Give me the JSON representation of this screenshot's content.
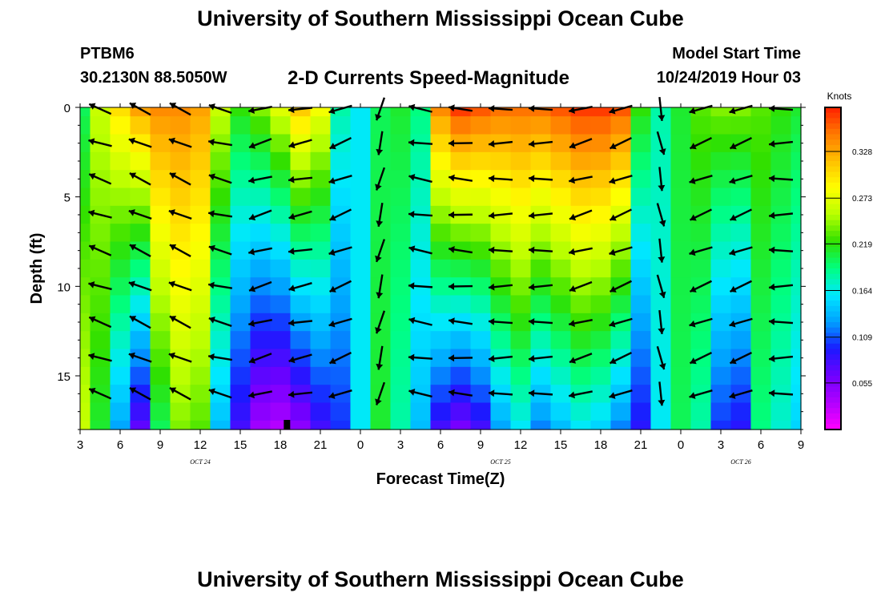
{
  "header": {
    "title": "University of Southern Mississippi Ocean Cube",
    "station_id": "PTBM6",
    "station_coords": "30.2130N 88.5050W",
    "chart_title": "2-D Currents Speed-Magnitude",
    "model_start_label": "Model Start Time",
    "model_start_value": "10/24/2019 Hour 03"
  },
  "footer": {
    "title": "University of Southern Mississippi Ocean Cube"
  },
  "chart_data": {
    "type": "heatmap",
    "title": "2-D Currents Speed-Magnitude",
    "xlabel": "Forecast Time(Z)",
    "ylabel": "Depth (ft)",
    "x_ticks_hours": [
      0,
      3,
      6,
      9,
      12,
      15,
      18,
      21,
      24,
      27,
      30,
      33,
      36,
      39,
      42,
      45,
      48,
      51,
      54
    ],
    "x_tick_labels": [
      "3",
      "6",
      "9",
      "12",
      "15",
      "18",
      "21",
      "0",
      "3",
      "6",
      "9",
      "12",
      "15",
      "18",
      "21",
      "0",
      "3",
      "6",
      "9"
    ],
    "xlim_hours_from_start": [
      0,
      54
    ],
    "date_labels": [
      {
        "text": "OCT 24",
        "hour": 9
      },
      {
        "text": "OCT 25",
        "hour": 31.5
      },
      {
        "text": "OCT 26",
        "hour": 49.5
      }
    ],
    "y_ticks": [
      0,
      5,
      10,
      15
    ],
    "ylim_ft": [
      0,
      18
    ],
    "colorbar": {
      "label": "Knots",
      "min": 0.0,
      "max": 0.38,
      "ticks": [
        "0.055",
        "0.109",
        "0.164",
        "0.219",
        "0.273",
        "0.328"
      ],
      "colors": [
        "#ff00ff",
        "#b000ff",
        "#7000ff",
        "#1a1aff",
        "#00a0ff",
        "#00e8ff",
        "#00ff80",
        "#30e000",
        "#b8ff00",
        "#ffff00",
        "#ffc000",
        "#ff7a00",
        "#ff2000"
      ]
    },
    "column_hours": [
      0,
      1.5,
      3,
      4.5,
      6,
      7.5,
      9,
      10.5,
      12,
      13.5,
      15,
      16.5,
      18,
      19.5,
      21,
      22.5,
      24,
      25.5,
      27,
      28.5,
      30,
      31.5,
      33,
      34.5,
      36,
      37.5,
      39,
      40.5,
      42,
      43.5,
      45,
      46.5,
      48,
      49.5,
      51,
      52.5,
      54
    ],
    "depth_rows_ft": [
      0,
      1,
      2,
      3,
      4,
      5,
      6,
      7,
      8,
      9,
      10,
      11,
      12,
      13,
      14,
      15,
      16,
      17,
      18
    ],
    "speed_knots_surface": [
      0.2,
      0.26,
      0.3,
      0.33,
      0.34,
      0.34,
      0.33,
      0.26,
      0.22,
      0.24,
      0.27,
      0.31,
      0.28,
      0.18,
      0.16,
      0.2,
      0.21,
      0.19,
      0.34,
      0.37,
      0.36,
      0.35,
      0.35,
      0.35,
      0.36,
      0.37,
      0.37,
      0.36,
      0.22,
      0.18,
      0.21,
      0.23,
      0.24,
      0.24,
      0.23,
      0.22,
      0.21
    ],
    "speed_knots_bottom": [
      0.26,
      0.21,
      0.13,
      0.07,
      0.2,
      0.24,
      0.23,
      0.14,
      0.08,
      0.04,
      0.03,
      0.05,
      0.08,
      0.1,
      0.16,
      0.21,
      0.18,
      0.14,
      0.08,
      0.06,
      0.08,
      0.13,
      0.16,
      0.12,
      0.14,
      0.16,
      0.15,
      0.12,
      0.09,
      0.16,
      0.2,
      0.18,
      0.1,
      0.09,
      0.19,
      0.17,
      0.15
    ],
    "vector_hours": [
      1.5,
      4.5,
      7.5,
      10.5,
      13.5,
      16.5,
      19.5,
      22.5,
      25.5,
      28.5,
      31.5,
      34.5,
      37.5,
      40.5,
      43.5,
      46.5,
      49.5,
      52.5
    ],
    "vector_depths_ft": [
      0,
      2,
      4,
      6,
      8,
      10,
      12,
      14,
      16
    ],
    "vector_direction_deg": [
      160,
      155,
      155,
      165,
      195,
      190,
      200,
      255,
      170,
      175,
      180,
      180,
      195,
      200,
      280,
      200,
      200,
      180
    ],
    "marker_hour": 15.5
  }
}
